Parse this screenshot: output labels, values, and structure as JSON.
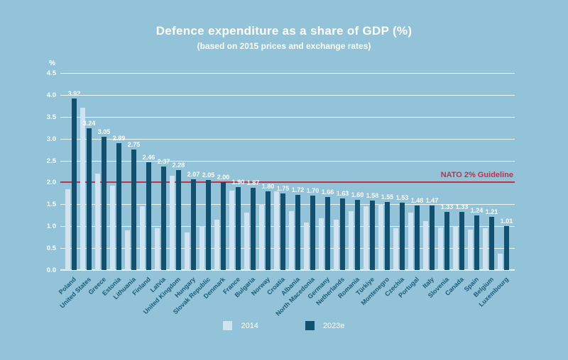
{
  "title": "Defence expenditure as a share of GDP (%)",
  "subtitle": "(based on 2015 prices and exchange rates)",
  "y_axis_unit": "%",
  "guideline": {
    "label": "NATO 2% Guideline",
    "value": 2.0
  },
  "colors": {
    "background": "#92c3d8",
    "bar_2014": "#cfe4f0",
    "bar_2023e": "#11506f",
    "gridline": "rgba(255,255,255,0.85)",
    "guideline_red": "#b7354c",
    "text_white": "#ffffff",
    "country_label": "#1b5a78"
  },
  "legend": [
    {
      "label": "2014"
    },
    {
      "label": "2023e"
    }
  ],
  "chart_data": {
    "type": "bar",
    "title": "Defence expenditure as a share of GDP (%)",
    "subtitle": "(based on 2015 prices and exchange rates)",
    "ylabel": "%",
    "ylim": [
      0,
      4.5
    ],
    "ytick_step": 0.5,
    "grid": true,
    "legend_position": "bottom",
    "annotation": {
      "text": "NATO 2% Guideline",
      "y": 2.0
    },
    "categories": [
      "Poland",
      "United States",
      "Greece",
      "Estonia",
      "Lithuania",
      "Finland",
      "Latvia",
      "United Kingdom",
      "Hungary",
      "Slovak Republic",
      "Denmark",
      "France",
      "Bulgaria",
      "Norway",
      "Croatia",
      "Albania",
      "North Macedonia",
      "Germany",
      "Netherlands",
      "Romania",
      "Türkiye",
      "Montenegro",
      "Czechia",
      "Portugal",
      "Italy",
      "Slovenia",
      "Canada",
      "Spain",
      "Belgium",
      "Luxembourg"
    ],
    "series": [
      {
        "name": "2014",
        "labels_shown": false,
        "values": [
          1.85,
          3.7,
          2.2,
          1.93,
          0.9,
          1.45,
          0.95,
          2.15,
          0.86,
          1.0,
          1.15,
          1.82,
          1.31,
          1.51,
          1.8,
          1.34,
          1.08,
          1.18,
          1.15,
          1.35,
          1.45,
          1.5,
          0.95,
          1.31,
          1.12,
          0.97,
          1.0,
          0.92,
          0.96,
          0.37
        ]
      },
      {
        "name": "2023e",
        "labels_shown": true,
        "values": [
          3.92,
          3.24,
          3.05,
          2.89,
          2.75,
          2.46,
          2.37,
          2.28,
          2.07,
          2.05,
          2.0,
          1.9,
          1.87,
          1.8,
          1.75,
          1.72,
          1.7,
          1.66,
          1.63,
          1.6,
          1.58,
          1.55,
          1.53,
          1.48,
          1.47,
          1.33,
          1.33,
          1.24,
          1.21,
          1.01
        ],
        "value_labels": [
          "3.92",
          "3.24",
          "3.05",
          "2.89",
          "2.75",
          "2.46",
          "2.37",
          "2.28",
          "2.07",
          "2.05",
          "2.00",
          "1.90",
          "1.87",
          "1.80",
          "1.75",
          "1.72",
          "1.70",
          "1.66",
          "1.63",
          "1.60",
          "1.58",
          "1.55",
          "1.53",
          "1.48",
          "1.47",
          "1.33",
          "1.33",
          "1.24",
          "1.21",
          "1.01"
        ]
      }
    ]
  }
}
